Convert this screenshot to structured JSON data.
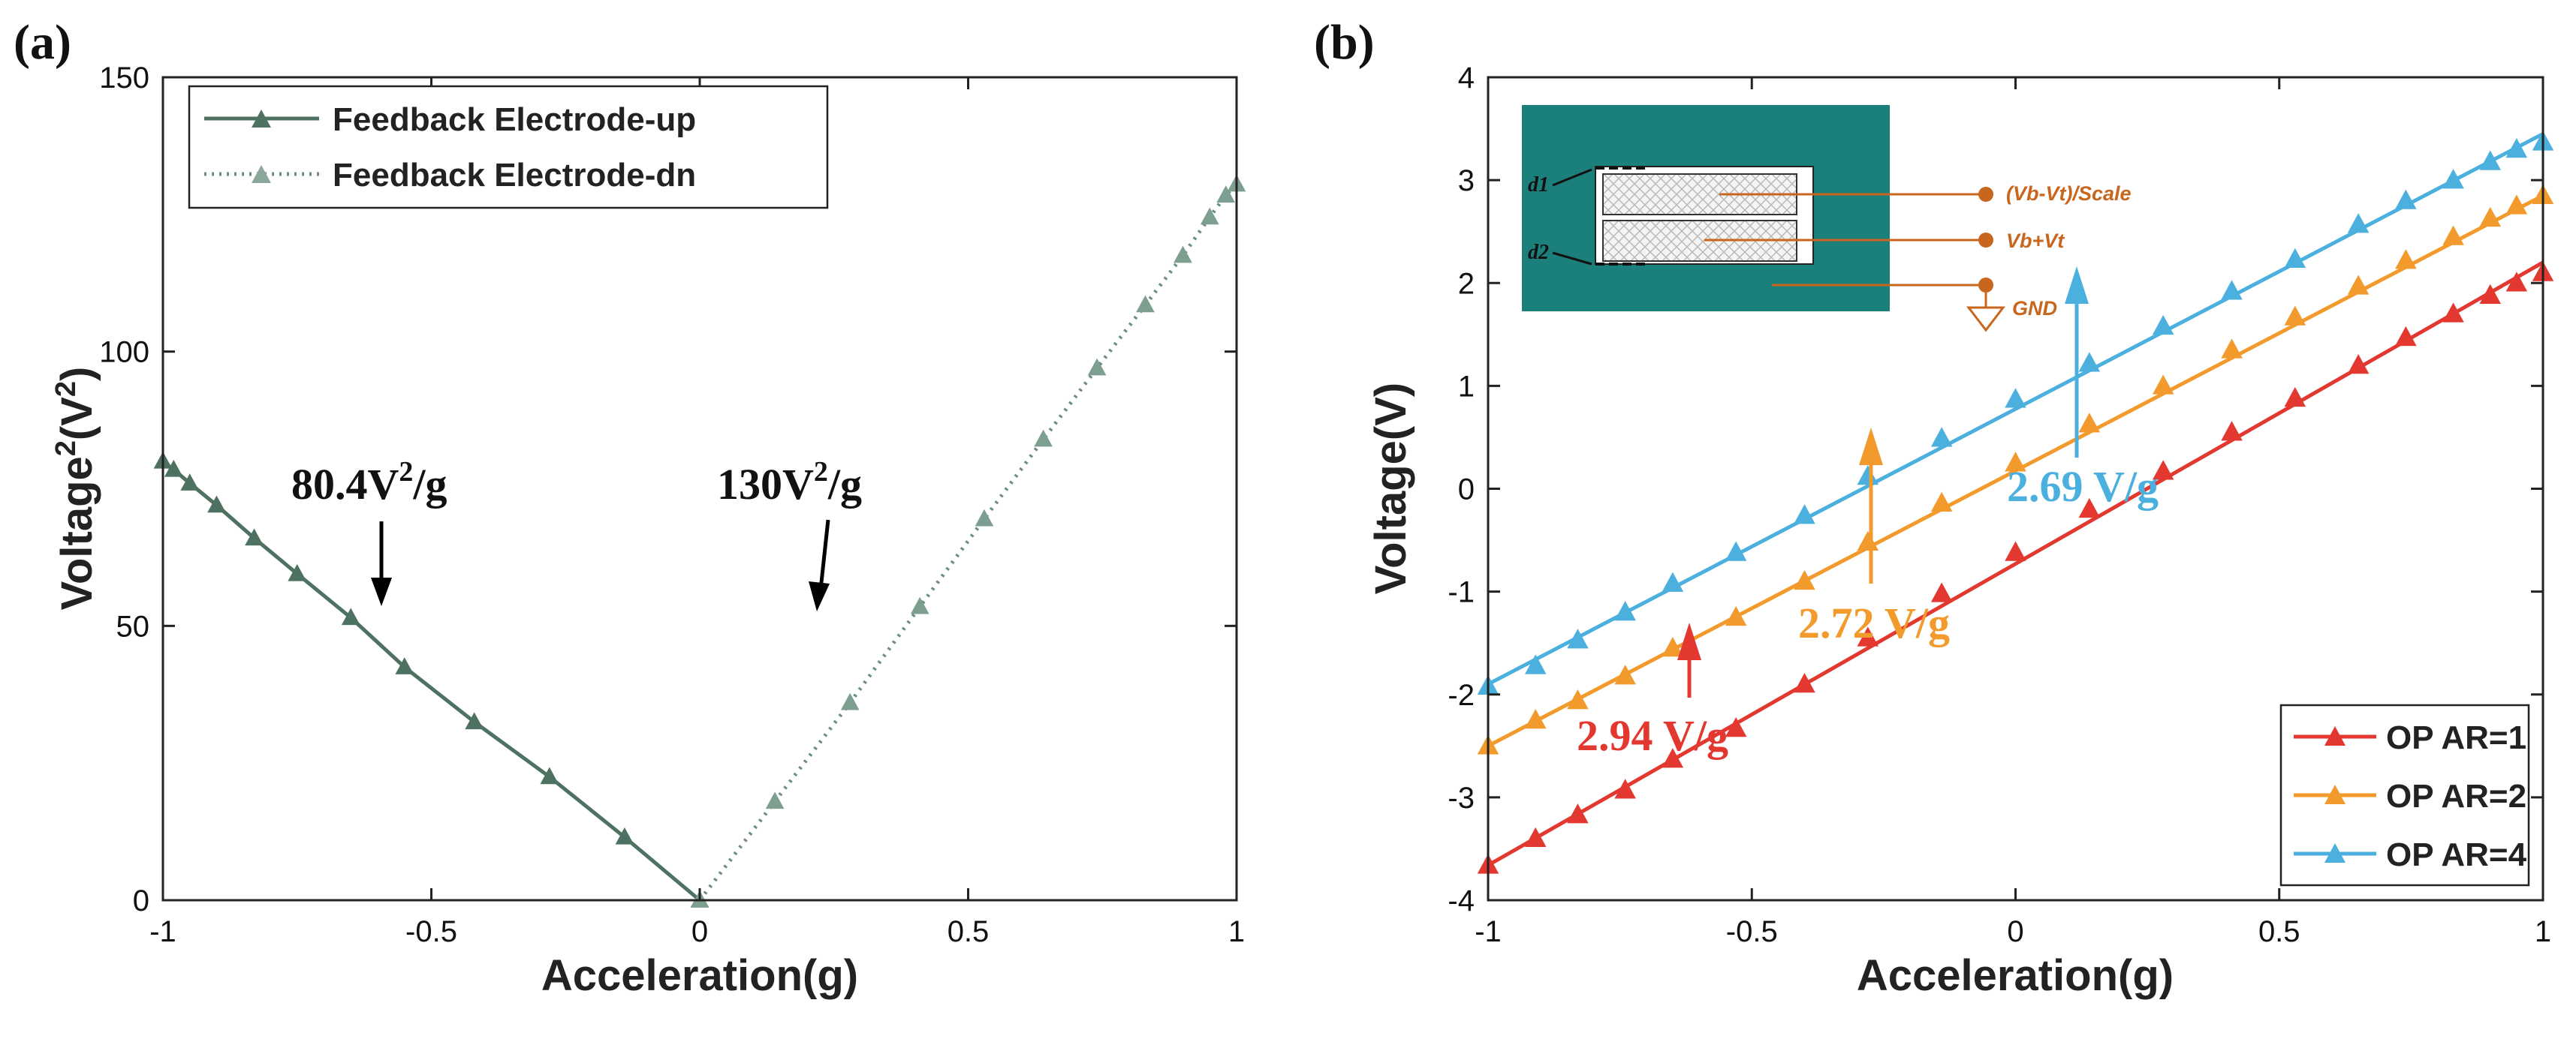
{
  "chart_data": [
    {
      "type": "line",
      "panel_label": "(a)",
      "xlabel": "Acceleration(g)",
      "ylabel_main": "Voltage",
      "ylabel_sup": "2",
      "ylabel_unit_open": "(V",
      "ylabel_unit_sup": "2",
      "ylabel_unit_close": ")",
      "xlim": [
        -1,
        1
      ],
      "ylim": [
        0,
        150
      ],
      "xticks": [
        -1,
        -0.5,
        0,
        0.5,
        1
      ],
      "xtick_labels": [
        "-1",
        "-0.5",
        "0",
        "0.5",
        "1"
      ],
      "yticks": [
        0,
        50,
        100,
        150
      ],
      "ytick_labels": [
        "0",
        "50",
        "100",
        "150"
      ],
      "legend_position": "top-left",
      "series": [
        {
          "name": "Feedback Electrode-up",
          "style": "solid",
          "color": "#4e7262",
          "x": [
            -1,
            -0.98,
            -0.95,
            -0.9,
            -0.83,
            -0.75,
            -0.65,
            -0.55,
            -0.42,
            -0.28,
            -0.14,
            0
          ],
          "y": [
            80,
            78.5,
            76,
            72,
            66,
            59.5,
            51.5,
            42.5,
            32.5,
            22.5,
            11.5,
            0
          ]
        },
        {
          "name": "Feedback Electrode-dn",
          "style": "dotted",
          "color": "#6e8f80",
          "x": [
            0,
            0.14,
            0.28,
            0.41,
            0.53,
            0.64,
            0.74,
            0.83,
            0.9,
            0.95,
            0.98,
            1
          ],
          "y": [
            0,
            18,
            36,
            53.5,
            69.5,
            84,
            97,
            108.5,
            117.5,
            124.5,
            128.5,
            130.5
          ]
        }
      ],
      "annotations": [
        {
          "text_main": "80.4V",
          "text_sup": "2",
          "text_tail": "/g"
        },
        {
          "text_main": "130V",
          "text_sup": "2",
          "text_tail": "/g"
        }
      ]
    },
    {
      "type": "line",
      "panel_label": "(b)",
      "xlabel": "Acceleration(g)",
      "ylabel": "Voltage(V)",
      "xlim": [
        -1,
        1
      ],
      "ylim": [
        -4,
        4
      ],
      "xticks": [
        -1,
        -0.5,
        0,
        0.5,
        1
      ],
      "xtick_labels": [
        "-1",
        "-0.5",
        "0",
        "0.5",
        "1"
      ],
      "yticks": [
        -4,
        -3,
        -2,
        -1,
        0,
        1,
        2,
        3,
        4
      ],
      "ytick_labels": [
        "-4",
        "-3",
        "-2",
        "-1",
        "0",
        "1",
        "2",
        "3",
        "4"
      ],
      "legend_position": "bottom-right",
      "series": [
        {
          "name": "OP AR=1",
          "color": "#e2382f",
          "fit": [
            -3.66,
            2.2
          ],
          "x": [
            -1,
            -0.91,
            -0.83,
            -0.74,
            -0.65,
            -0.53,
            -0.4,
            -0.28,
            -0.14,
            0,
            0.14,
            0.28,
            0.41,
            0.53,
            0.65,
            0.74,
            0.83,
            0.9,
            0.95,
            1
          ],
          "y": [
            -3.66,
            -3.4,
            -3.17,
            -2.93,
            -2.63,
            -2.33,
            -1.9,
            -1.45,
            -1.02,
            -0.62,
            -0.2,
            0.17,
            0.55,
            0.88,
            1.2,
            1.47,
            1.7,
            1.88,
            2.0,
            2.1
          ]
        },
        {
          "name": "OP AR=2",
          "color": "#f39a2c",
          "fit": [
            -2.5,
            2.85
          ],
          "x": [
            -1,
            -0.91,
            -0.83,
            -0.74,
            -0.65,
            -0.53,
            -0.4,
            -0.28,
            -0.14,
            0,
            0.14,
            0.28,
            0.41,
            0.53,
            0.65,
            0.74,
            0.83,
            0.9,
            0.95,
            1
          ],
          "y": [
            -2.5,
            -2.25,
            -2.06,
            -1.82,
            -1.55,
            -1.25,
            -0.9,
            -0.52,
            -0.14,
            0.25,
            0.63,
            1.0,
            1.35,
            1.67,
            1.97,
            2.22,
            2.45,
            2.63,
            2.75,
            2.85
          ]
        },
        {
          "name": "OP AR=4",
          "color": "#4bb0de",
          "fit": [
            -1.9,
            3.45
          ],
          "x": [
            -1,
            -0.91,
            -0.83,
            -0.74,
            -0.65,
            -0.53,
            -0.4,
            -0.28,
            -0.14,
            0,
            0.14,
            0.28,
            0.41,
            0.53,
            0.65,
            0.74,
            0.83,
            0.9,
            0.95,
            1
          ],
          "y": [
            -1.92,
            -1.72,
            -1.47,
            -1.2,
            -0.92,
            -0.62,
            -0.26,
            0.12,
            0.49,
            0.87,
            1.22,
            1.58,
            1.92,
            2.23,
            2.57,
            2.8,
            3.0,
            3.18,
            3.3,
            3.37
          ]
        }
      ],
      "annotations": [
        {
          "text": "2.94 V/g",
          "color": "#e2382f"
        },
        {
          "text": "2.72 V/g",
          "color": "#f39a2c"
        },
        {
          "text": "2.69 V/g",
          "color": "#4bb0de"
        }
      ],
      "inset": {
        "labels": [
          "(Vb-Vt)/Scale",
          "Vb+Vt",
          "GND"
        ],
        "d1": "d1",
        "d2": "d2",
        "background": "#1b7f7b"
      }
    }
  ]
}
